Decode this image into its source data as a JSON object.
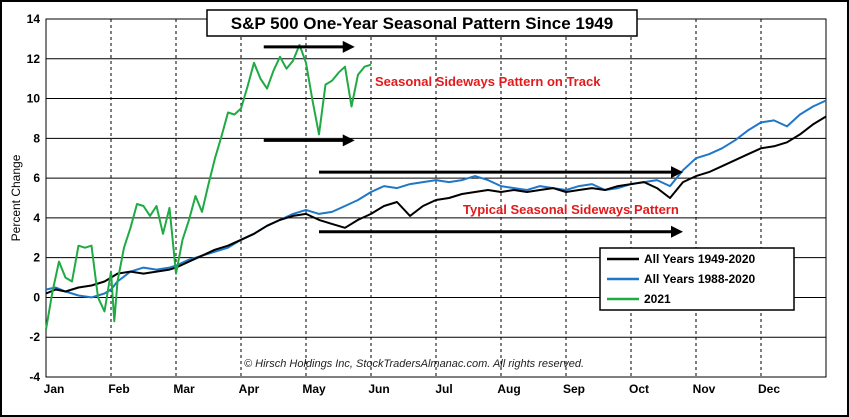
{
  "chart_data": {
    "type": "line",
    "title": "S&P 500 One-Year Seasonal Pattern Since 1949",
    "ylabel": "Percent Change",
    "xlabel": "",
    "ylim": [
      -4,
      14
    ],
    "yticks": [
      -4,
      -2,
      0,
      2,
      4,
      6,
      8,
      10,
      12,
      14
    ],
    "categories": [
      "Jan",
      "Feb",
      "Mar",
      "Apr",
      "May",
      "Jun",
      "Jul",
      "Aug",
      "Sep",
      "Oct",
      "Nov",
      "Dec"
    ],
    "grid": true,
    "legend_position": "lower-right",
    "series": [
      {
        "name": "All Years 1949-2020",
        "color": "#000000",
        "x": [
          0,
          0.15,
          0.3,
          0.5,
          0.7,
          0.9,
          1.0,
          1.1,
          1.3,
          1.5,
          1.7,
          1.9,
          2.0,
          2.2,
          2.4,
          2.6,
          2.8,
          3.0,
          3.2,
          3.4,
          3.6,
          3.8,
          4.0,
          4.2,
          4.4,
          4.6,
          4.8,
          5.0,
          5.2,
          5.4,
          5.6,
          5.8,
          6.0,
          6.2,
          6.4,
          6.6,
          6.8,
          7.0,
          7.2,
          7.4,
          7.6,
          7.8,
          8.0,
          8.2,
          8.4,
          8.6,
          8.8,
          9.0,
          9.2,
          9.4,
          9.6,
          9.8,
          10.0,
          10.2,
          10.4,
          10.6,
          10.8,
          11.0,
          11.2,
          11.4,
          11.6,
          11.8,
          12.0
        ],
        "values": [
          0.2,
          0.4,
          0.3,
          0.5,
          0.6,
          0.8,
          1.0,
          1.2,
          1.3,
          1.2,
          1.3,
          1.4,
          1.5,
          1.8,
          2.1,
          2.4,
          2.6,
          2.9,
          3.2,
          3.6,
          3.9,
          4.1,
          4.2,
          3.9,
          3.7,
          3.5,
          3.9,
          4.2,
          4.6,
          4.8,
          4.1,
          4.6,
          4.9,
          5.0,
          5.2,
          5.3,
          5.4,
          5.3,
          5.4,
          5.3,
          5.4,
          5.5,
          5.3,
          5.4,
          5.5,
          5.4,
          5.6,
          5.7,
          5.8,
          5.5,
          5.0,
          5.8,
          6.1,
          6.3,
          6.6,
          6.9,
          7.2,
          7.5,
          7.6,
          7.8,
          8.2,
          8.7,
          9.1
        ]
      },
      {
        "name": "All Years 1988-2020",
        "color": "#1f77c8",
        "x": [
          0,
          0.15,
          0.3,
          0.5,
          0.7,
          0.9,
          1.0,
          1.1,
          1.3,
          1.5,
          1.7,
          1.9,
          2.0,
          2.2,
          2.4,
          2.6,
          2.8,
          3.0,
          3.2,
          3.4,
          3.6,
          3.8,
          4.0,
          4.2,
          4.4,
          4.6,
          4.8,
          5.0,
          5.2,
          5.4,
          5.6,
          5.8,
          6.0,
          6.2,
          6.4,
          6.6,
          6.8,
          7.0,
          7.2,
          7.4,
          7.6,
          7.8,
          8.0,
          8.2,
          8.4,
          8.6,
          8.8,
          9.0,
          9.2,
          9.4,
          9.6,
          9.8,
          10.0,
          10.2,
          10.4,
          10.6,
          10.8,
          11.0,
          11.2,
          11.4,
          11.6,
          11.8,
          12.0
        ],
        "values": [
          0.4,
          0.5,
          0.3,
          0.1,
          0.0,
          0.2,
          0.4,
          0.8,
          1.3,
          1.5,
          1.4,
          1.5,
          1.6,
          1.9,
          2.1,
          2.3,
          2.5,
          2.9,
          3.2,
          3.6,
          3.9,
          4.2,
          4.4,
          4.2,
          4.3,
          4.6,
          4.9,
          5.3,
          5.6,
          5.5,
          5.7,
          5.8,
          5.9,
          5.8,
          5.9,
          6.1,
          5.9,
          5.6,
          5.5,
          5.4,
          5.6,
          5.5,
          5.4,
          5.6,
          5.7,
          5.4,
          5.5,
          5.7,
          5.8,
          5.9,
          5.6,
          6.4,
          7.0,
          7.2,
          7.5,
          7.9,
          8.4,
          8.8,
          8.9,
          8.6,
          9.2,
          9.6,
          9.9
        ]
      },
      {
        "name": "2021",
        "color": "#1faa44",
        "x": [
          0,
          0.1,
          0.2,
          0.3,
          0.4,
          0.5,
          0.6,
          0.7,
          0.8,
          0.9,
          1.0,
          1.05,
          1.1,
          1.2,
          1.3,
          1.4,
          1.5,
          1.6,
          1.7,
          1.8,
          1.9,
          2.0,
          2.1,
          2.2,
          2.3,
          2.4,
          2.5,
          2.6,
          2.7,
          2.8,
          2.9,
          3.0,
          3.1,
          3.2,
          3.3,
          3.4,
          3.5,
          3.6,
          3.7,
          3.8,
          3.9,
          4.0,
          4.1,
          4.2,
          4.3,
          4.4,
          4.5,
          4.6,
          4.7,
          4.8,
          4.9,
          5.0
        ],
        "values": [
          -1.6,
          0.3,
          1.8,
          1.0,
          0.8,
          2.6,
          2.5,
          2.6,
          0.0,
          -0.7,
          1.3,
          -1.2,
          0.8,
          2.5,
          3.5,
          4.7,
          4.6,
          4.1,
          4.6,
          3.2,
          4.5,
          1.2,
          2.9,
          3.9,
          5.1,
          4.3,
          5.7,
          7.0,
          8.1,
          9.3,
          9.2,
          9.5,
          10.6,
          11.8,
          11.0,
          10.5,
          11.4,
          12.1,
          11.5,
          11.9,
          12.7,
          11.8,
          9.9,
          8.2,
          10.7,
          10.9,
          11.3,
          11.6,
          9.6,
          11.2,
          11.6,
          11.7
        ]
      }
    ],
    "annotations": [
      {
        "text": "Seasonal Sideways Pattern on Track",
        "color": "#e31a1c"
      },
      {
        "text": "Typical Seasonal Sideways Pattern",
        "color": "#e31a1c"
      }
    ],
    "copyright": "© Hirsch Holdings Inc, StockTradersAlmanac.com. All rights reserved."
  }
}
